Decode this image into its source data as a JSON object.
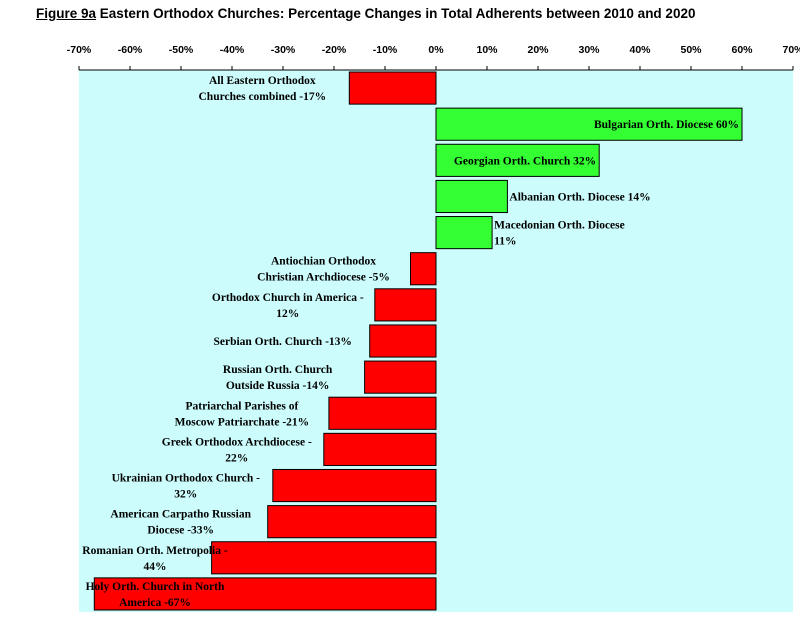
{
  "title": {
    "figure": "Figure 9a",
    "text": "Eastern Orthodox Churches: Percentage Changes in Total Adherents between 2010 and 2020"
  },
  "chart_data": {
    "type": "bar",
    "orientation": "horizontal",
    "xlim": [
      -70,
      70
    ],
    "x_ticks": [
      "-70%",
      "-60%",
      "-50%",
      "-40%",
      "-30%",
      "-20%",
      "-10%",
      "0%",
      "10%",
      "20%",
      "30%",
      "40%",
      "50%",
      "60%",
      "70%"
    ],
    "x_tick_values": [
      -70,
      -60,
      -50,
      -40,
      -30,
      -20,
      -10,
      0,
      10,
      20,
      30,
      40,
      50,
      60,
      70
    ],
    "plot_background": "#ccfcfc",
    "positive_color": "#33ff33",
    "negative_color": "#ff0000",
    "categories": [
      {
        "label_lines": [
          "All Eastern Orthodox",
          "Churches combined -17%"
        ],
        "value": -17
      },
      {
        "label_lines": [
          "Bulgarian Orth. Diocese 60%"
        ],
        "value": 60
      },
      {
        "label_lines": [
          "Georgian Orth. Church 32%"
        ],
        "value": 32
      },
      {
        "label_lines": [
          "Albanian Orth. Diocese 14%"
        ],
        "value": 14
      },
      {
        "label_lines": [
          "Macedonian Orth. Diocese",
          "11%"
        ],
        "value": 11
      },
      {
        "label_lines": [
          "Antiochian Orthodox",
          "Christian Archdiocese -5%"
        ],
        "value": -5
      },
      {
        "label_lines": [
          "Orthodox Church in America -",
          "12%"
        ],
        "value": -12
      },
      {
        "label_lines": [
          "Serbian Orth. Church -13%"
        ],
        "value": -13
      },
      {
        "label_lines": [
          "Russian Orth. Church",
          "Outside Russia -14%"
        ],
        "value": -14
      },
      {
        "label_lines": [
          "Patriarchal Parishes of",
          "Moscow Patriarchate -21%"
        ],
        "value": -21
      },
      {
        "label_lines": [
          "Greek Orthodox Archdiocese -",
          "22%"
        ],
        "value": -22
      },
      {
        "label_lines": [
          "Ukrainian Orthodox Church -",
          "32%"
        ],
        "value": -32
      },
      {
        "label_lines": [
          "American Carpatho Russian",
          "Diocese -33%"
        ],
        "value": -33
      },
      {
        "label_lines": [
          "Romanian Orth. Metropolia -",
          "44%"
        ],
        "value": -44
      },
      {
        "label_lines": [
          "Holy Orth. Church in North",
          "America -67%"
        ],
        "value": -67
      }
    ]
  }
}
